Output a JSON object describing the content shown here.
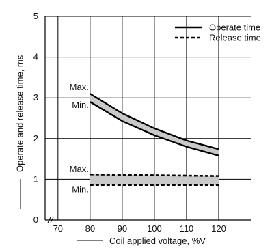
{
  "chart_data": {
    "type": "line",
    "title": "",
    "xlabel": "Coil applied voltage, %V",
    "ylabel": "Operate and release time, ms",
    "xlim": [
      66,
      130
    ],
    "ylim": [
      0,
      5
    ],
    "x_ticks": [
      70,
      80,
      90,
      100,
      110,
      120
    ],
    "y_ticks": [
      0,
      1,
      2,
      3,
      4,
      5
    ],
    "grid": true,
    "legend_position": "top-right",
    "series": [
      {
        "name": "Operate time",
        "bound": "Max.",
        "style": "solid",
        "x": [
          80,
          90,
          100,
          110,
          120
        ],
        "values": [
          3.1,
          2.62,
          2.25,
          1.95,
          1.74
        ]
      },
      {
        "name": "Operate time",
        "bound": "Min.",
        "style": "solid",
        "x": [
          80,
          90,
          100,
          110,
          120
        ],
        "values": [
          2.9,
          2.43,
          2.08,
          1.8,
          1.58
        ]
      },
      {
        "name": "Release time",
        "bound": "Max.",
        "style": "dashed",
        "x": [
          80,
          90,
          100,
          110,
          120
        ],
        "values": [
          1.12,
          1.11,
          1.1,
          1.09,
          1.08
        ]
      },
      {
        "name": "Release time",
        "bound": "Min.",
        "style": "dashed",
        "x": [
          80,
          90,
          100,
          110,
          120
        ],
        "values": [
          0.86,
          0.86,
          0.86,
          0.86,
          0.86
        ]
      }
    ],
    "legend": [
      {
        "label": "Operate time",
        "style": "solid"
      },
      {
        "label": "Release time",
        "style": "dashed"
      }
    ],
    "annotations": [
      {
        "text": "Max.",
        "series": "Operate time"
      },
      {
        "text": "Min.",
        "series": "Operate time"
      },
      {
        "text": "Max.",
        "series": "Release time"
      },
      {
        "text": "Min.",
        "series": "Release time"
      }
    ],
    "colors": {
      "line": "#000000",
      "band_fill": "#c9c9c9",
      "grid": "#000000"
    }
  }
}
